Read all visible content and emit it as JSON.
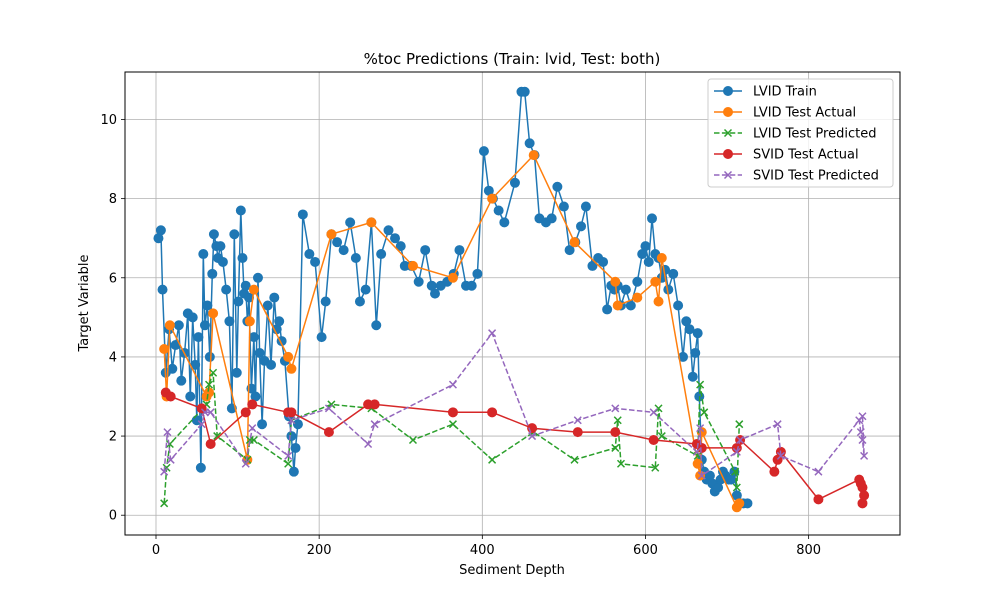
{
  "chart_data": {
    "type": "line",
    "title": "%toc Predictions (Train: lvid, Test: both)",
    "xlabel": "Sediment Depth",
    "ylabel": "Target Variable",
    "xlim": [
      -38,
      912
    ],
    "ylim": [
      -0.5,
      11.2
    ],
    "xticks": [
      0,
      200,
      400,
      600,
      800
    ],
    "yticks": [
      0,
      2,
      4,
      6,
      8,
      10
    ],
    "grid": true,
    "legend_position": "top-right",
    "series": [
      {
        "name": "LVID Train",
        "color": "#1f77b4",
        "linestyle": "solid",
        "marker": "circle",
        "points": [
          [
            3,
            7.0
          ],
          [
            6,
            7.2
          ],
          [
            8,
            5.7
          ],
          [
            12,
            3.6
          ],
          [
            16,
            4.7
          ],
          [
            20,
            3.7
          ],
          [
            24,
            4.3
          ],
          [
            28,
            4.8
          ],
          [
            31,
            3.4
          ],
          [
            35,
            4.1
          ],
          [
            39,
            5.1
          ],
          [
            42,
            3.0
          ],
          [
            45,
            5.0
          ],
          [
            48,
            3.8
          ],
          [
            50,
            2.4
          ],
          [
            52,
            4.5
          ],
          [
            55,
            1.2
          ],
          [
            58,
            6.6
          ],
          [
            60,
            4.8
          ],
          [
            63,
            5.3
          ],
          [
            66,
            4.0
          ],
          [
            69,
            6.1
          ],
          [
            71,
            7.1
          ],
          [
            74,
            6.8
          ],
          [
            76,
            6.5
          ],
          [
            79,
            6.8
          ],
          [
            82,
            6.4
          ],
          [
            86,
            5.7
          ],
          [
            90,
            4.9
          ],
          [
            93,
            2.7
          ],
          [
            96,
            7.1
          ],
          [
            99,
            3.6
          ],
          [
            101,
            5.4
          ],
          [
            104,
            7.7
          ],
          [
            106,
            6.5
          ],
          [
            108,
            5.6
          ],
          [
            110,
            5.8
          ],
          [
            112,
            4.9
          ],
          [
            114,
            5.5
          ],
          [
            117,
            3.2
          ],
          [
            120,
            4.5
          ],
          [
            122,
            3.0
          ],
          [
            125,
            6.0
          ],
          [
            127,
            4.1
          ],
          [
            130,
            2.3
          ],
          [
            133,
            3.9
          ],
          [
            137,
            5.3
          ],
          [
            141,
            3.8
          ],
          [
            145,
            5.5
          ],
          [
            148,
            4.7
          ],
          [
            151,
            4.9
          ],
          [
            154,
            4.4
          ],
          [
            158,
            3.9
          ],
          [
            163,
            2.5
          ],
          [
            166,
            2.0
          ],
          [
            169,
            1.1
          ],
          [
            171,
            1.7
          ],
          [
            174,
            2.3
          ],
          [
            180,
            7.6
          ],
          [
            188,
            6.6
          ],
          [
            195,
            6.4
          ],
          [
            203,
            4.5
          ],
          [
            208,
            5.4
          ],
          [
            215,
            7.1
          ],
          [
            222,
            6.9
          ],
          [
            230,
            6.7
          ],
          [
            238,
            7.4
          ],
          [
            245,
            6.5
          ],
          [
            250,
            5.4
          ],
          [
            257,
            5.7
          ],
          [
            264,
            7.4
          ],
          [
            270,
            4.8
          ],
          [
            276,
            6.6
          ],
          [
            285,
            7.2
          ],
          [
            293,
            7.0
          ],
          [
            300,
            6.8
          ],
          [
            305,
            6.3
          ],
          [
            313,
            6.3
          ],
          [
            322,
            5.9
          ],
          [
            330,
            6.7
          ],
          [
            338,
            5.8
          ],
          [
            342,
            5.6
          ],
          [
            349,
            5.8
          ],
          [
            357,
            5.9
          ],
          [
            365,
            6.1
          ],
          [
            372,
            6.7
          ],
          [
            380,
            5.8
          ],
          [
            387,
            5.8
          ],
          [
            394,
            6.1
          ],
          [
            402,
            9.2
          ],
          [
            408,
            8.2
          ],
          [
            413,
            8.0
          ],
          [
            420,
            7.7
          ],
          [
            427,
            7.4
          ],
          [
            440,
            8.4
          ],
          [
            448,
            10.7
          ],
          [
            452,
            10.7
          ],
          [
            458,
            9.4
          ],
          [
            464,
            9.1
          ],
          [
            470,
            7.5
          ],
          [
            478,
            7.4
          ],
          [
            485,
            7.5
          ],
          [
            492,
            8.3
          ],
          [
            500,
            7.8
          ],
          [
            507,
            6.7
          ],
          [
            514,
            6.9
          ],
          [
            521,
            7.3
          ],
          [
            527,
            7.8
          ],
          [
            535,
            6.3
          ],
          [
            542,
            6.5
          ],
          [
            548,
            6.4
          ],
          [
            553,
            5.2
          ],
          [
            558,
            5.8
          ],
          [
            562,
            5.7
          ],
          [
            566,
            5.8
          ],
          [
            570,
            5.3
          ],
          [
            576,
            5.7
          ],
          [
            582,
            5.3
          ],
          [
            590,
            5.9
          ],
          [
            596,
            6.6
          ],
          [
            600,
            6.8
          ],
          [
            604,
            6.4
          ],
          [
            608,
            7.5
          ],
          [
            612,
            6.6
          ],
          [
            616,
            6.5
          ],
          [
            620,
            6.0
          ],
          [
            624,
            6.2
          ],
          [
            628,
            5.7
          ],
          [
            634,
            6.1
          ],
          [
            640,
            5.3
          ],
          [
            646,
            4.0
          ],
          [
            650,
            4.9
          ],
          [
            654,
            4.7
          ],
          [
            658,
            3.5
          ],
          [
            661,
            4.1
          ],
          [
            664,
            4.6
          ],
          [
            666,
            3.0
          ],
          [
            669,
            1.4
          ],
          [
            672,
            1.1
          ],
          [
            675,
            0.9
          ],
          [
            679,
            1.0
          ],
          [
            682,
            0.8
          ],
          [
            685,
            0.6
          ],
          [
            689,
            0.7
          ],
          [
            692,
            0.9
          ],
          [
            695,
            1.1
          ],
          [
            698,
            1.0
          ],
          [
            702,
            0.9
          ],
          [
            705,
            0.9
          ],
          [
            709,
            1.1
          ],
          [
            712,
            0.5
          ],
          [
            716,
            0.3
          ],
          [
            720,
            0.3
          ],
          [
            725,
            0.3
          ]
        ]
      },
      {
        "name": "LVID Test Actual",
        "color": "#ff7f0e",
        "linestyle": "solid",
        "marker": "circle",
        "points": [
          [
            10,
            4.2
          ],
          [
            13,
            3.0
          ],
          [
            17,
            4.8
          ],
          [
            62,
            3.0
          ],
          [
            65,
            3.1
          ],
          [
            70,
            5.1
          ],
          [
            112,
            1.4
          ],
          [
            115,
            4.9
          ],
          [
            120,
            5.7
          ],
          [
            162,
            4.0
          ],
          [
            166,
            3.7
          ],
          [
            215,
            7.1
          ],
          [
            264,
            7.4
          ],
          [
            315,
            6.3
          ],
          [
            364,
            6.0
          ],
          [
            412,
            8.0
          ],
          [
            463,
            9.1
          ],
          [
            513,
            6.9
          ],
          [
            563,
            5.9
          ],
          [
            566,
            5.3
          ],
          [
            590,
            5.5
          ],
          [
            612,
            5.9
          ],
          [
            616,
            5.4
          ],
          [
            620,
            6.5
          ],
          [
            664,
            1.3
          ],
          [
            667,
            1.0
          ],
          [
            669,
            2.1
          ],
          [
            712,
            0.2
          ],
          [
            715,
            0.3
          ]
        ]
      },
      {
        "name": "LVID Test Predicted",
        "color": "#2ca02c",
        "linestyle": "dashed",
        "marker": "x",
        "points": [
          [
            10,
            0.3
          ],
          [
            13,
            1.2
          ],
          [
            17,
            1.8
          ],
          [
            62,
            2.8
          ],
          [
            65,
            3.3
          ],
          [
            70,
            3.6
          ],
          [
            75,
            2.0
          ],
          [
            112,
            1.4
          ],
          [
            115,
            1.9
          ],
          [
            120,
            1.9
          ],
          [
            162,
            1.3
          ],
          [
            166,
            2.4
          ],
          [
            215,
            2.8
          ],
          [
            264,
            2.7
          ],
          [
            315,
            1.9
          ],
          [
            364,
            2.3
          ],
          [
            412,
            1.4
          ],
          [
            463,
            2.1
          ],
          [
            513,
            1.4
          ],
          [
            563,
            1.7
          ],
          [
            566,
            2.4
          ],
          [
            570,
            1.3
          ],
          [
            612,
            1.2
          ],
          [
            616,
            2.7
          ],
          [
            620,
            2.0
          ],
          [
            664,
            1.5
          ],
          [
            667,
            3.3
          ],
          [
            672,
            2.6
          ],
          [
            710,
            1.1
          ],
          [
            712,
            0.7
          ],
          [
            715,
            2.3
          ]
        ]
      },
      {
        "name": "SVID Test Actual",
        "color": "#d62728",
        "linestyle": "solid",
        "marker": "circle",
        "points": [
          [
            12,
            3.1
          ],
          [
            18,
            3.0
          ],
          [
            56,
            2.7
          ],
          [
            67,
            1.8
          ],
          [
            110,
            2.6
          ],
          [
            118,
            2.8
          ],
          [
            162,
            2.6
          ],
          [
            166,
            2.6
          ],
          [
            212,
            2.1
          ],
          [
            260,
            2.8
          ],
          [
            268,
            2.8
          ],
          [
            364,
            2.6
          ],
          [
            412,
            2.6
          ],
          [
            461,
            2.2
          ],
          [
            517,
            2.1
          ],
          [
            563,
            2.1
          ],
          [
            610,
            1.9
          ],
          [
            663,
            1.8
          ],
          [
            669,
            1.7
          ],
          [
            712,
            1.7
          ],
          [
            716,
            1.9
          ],
          [
            758,
            1.1
          ],
          [
            762,
            1.4
          ],
          [
            766,
            1.6
          ],
          [
            812,
            0.4
          ],
          [
            862,
            0.9
          ],
          [
            864,
            0.8
          ],
          [
            866,
            0.7
          ],
          [
            868,
            0.5
          ],
          [
            866,
            0.3
          ]
        ]
      },
      {
        "name": "SVID Test Predicted",
        "color": "#9467bd",
        "linestyle": "dashed",
        "marker": "x",
        "points": [
          [
            10,
            1.1
          ],
          [
            14,
            2.1
          ],
          [
            18,
            1.4
          ],
          [
            56,
            2.3
          ],
          [
            60,
            2.6
          ],
          [
            67,
            2.6
          ],
          [
            110,
            1.3
          ],
          [
            118,
            2.2
          ],
          [
            162,
            1.5
          ],
          [
            166,
            2.4
          ],
          [
            212,
            2.7
          ],
          [
            260,
            1.8
          ],
          [
            268,
            2.3
          ],
          [
            364,
            3.3
          ],
          [
            412,
            4.6
          ],
          [
            461,
            2.0
          ],
          [
            517,
            2.4
          ],
          [
            563,
            2.7
          ],
          [
            610,
            2.6
          ],
          [
            663,
            1.6
          ],
          [
            667,
            2.2
          ],
          [
            669,
            1.0
          ],
          [
            712,
            1.6
          ],
          [
            716,
            1.9
          ],
          [
            762,
            2.3
          ],
          [
            766,
            1.5
          ],
          [
            812,
            1.1
          ],
          [
            862,
            2.4
          ],
          [
            864,
            2.1
          ],
          [
            866,
            1.9
          ],
          [
            868,
            1.5
          ],
          [
            866,
            2.5
          ]
        ]
      }
    ]
  }
}
